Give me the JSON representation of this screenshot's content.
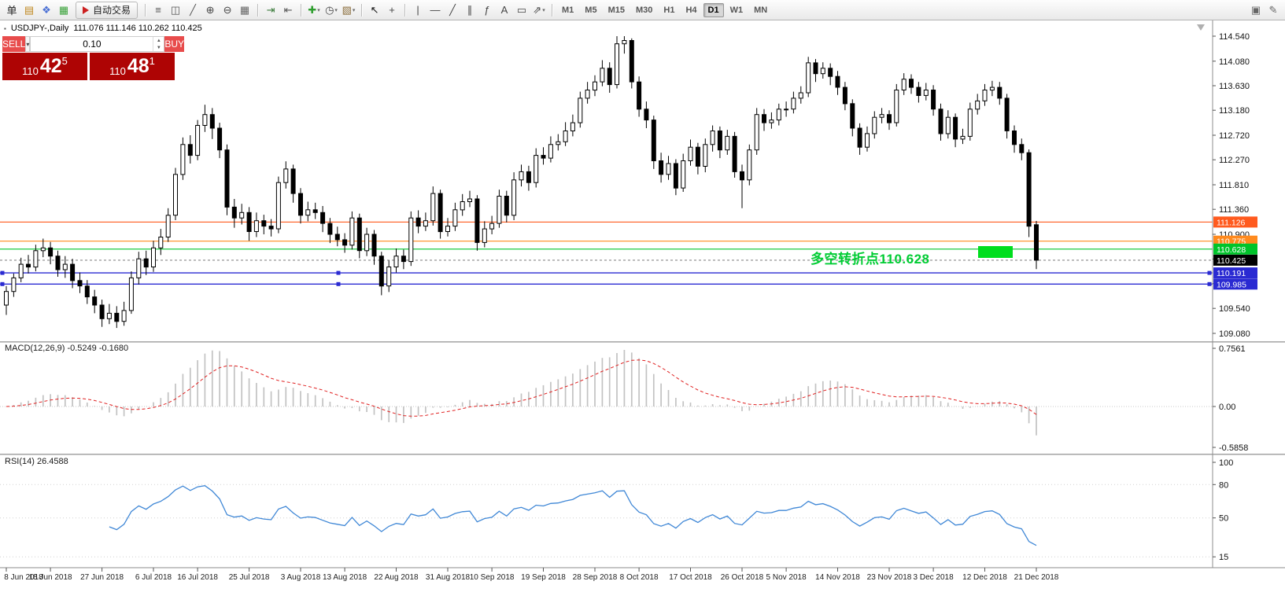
{
  "toolbar": {
    "auto_trading_label": "自动交易",
    "timeframes": [
      "M1",
      "M5",
      "M15",
      "M30",
      "H1",
      "H4",
      "D1",
      "W1",
      "MN"
    ],
    "active_timeframe": "D1",
    "items": [
      {
        "t": "icon",
        "name": "new-order",
        "glyph": "单",
        "color": "#222222"
      },
      {
        "t": "icon",
        "name": "new-chart",
        "glyph": "▤",
        "color": "#c08820"
      },
      {
        "t": "icon",
        "name": "profiles",
        "glyph": "❖",
        "color": "#4a6fd4"
      },
      {
        "t": "icon",
        "name": "data-window",
        "glyph": "▦",
        "color": "#3aa23a"
      },
      {
        "t": "auto",
        "name": "auto-trading"
      },
      {
        "t": "sep"
      },
      {
        "t": "icon",
        "name": "bar-chart",
        "glyph": "≡",
        "color": "#555555"
      },
      {
        "t": "icon",
        "name": "candlestick-chart",
        "glyph": "◫",
        "color": "#555555"
      },
      {
        "t": "icon",
        "name": "line-chart",
        "glyph": "╱",
        "color": "#555555"
      },
      {
        "t": "icon",
        "name": "zoom-in",
        "glyph": "⊕",
        "color": "#444444"
      },
      {
        "t": "icon",
        "name": "zoom-out",
        "glyph": "⊖",
        "color": "#444444"
      },
      {
        "t": "icon",
        "name": "tile-windows",
        "glyph": "▦",
        "color": "#666666"
      },
      {
        "t": "sep"
      },
      {
        "t": "icon",
        "name": "auto-scroll",
        "glyph": "⇥",
        "color": "#3a7a3a"
      },
      {
        "t": "icon",
        "name": "chart-shift",
        "glyph": "⇤",
        "color": "#555555"
      },
      {
        "t": "sep"
      },
      {
        "t": "icon",
        "name": "indicators",
        "glyph": "✚",
        "color": "#2e9e2e",
        "dd": true
      },
      {
        "t": "icon",
        "name": "periods",
        "glyph": "◷",
        "color": "#444444",
        "dd": true
      },
      {
        "t": "icon",
        "name": "templates",
        "glyph": "▧",
        "color": "#8a6d3b",
        "dd": true
      },
      {
        "t": "sep"
      },
      {
        "t": "icon",
        "name": "cursor",
        "glyph": "↖",
        "color": "#111111"
      },
      {
        "t": "icon",
        "name": "crosshair",
        "glyph": "+",
        "color": "#444444"
      },
      {
        "t": "sep"
      },
      {
        "t": "icon",
        "name": "vertical-line",
        "glyph": "|",
        "color": "#444444"
      },
      {
        "t": "icon",
        "name": "horizontal-line",
        "glyph": "—",
        "color": "#444444"
      },
      {
        "t": "icon",
        "name": "trendline",
        "glyph": "╱",
        "color": "#444444"
      },
      {
        "t": "icon",
        "name": "equidistant-channel",
        "glyph": "∥",
        "color": "#444444"
      },
      {
        "t": "icon",
        "name": "fibonacci",
        "glyph": "ƒ",
        "color": "#444444"
      },
      {
        "t": "icon",
        "name": "text",
        "glyph": "A",
        "color": "#444444"
      },
      {
        "t": "icon",
        "name": "text-label",
        "glyph": "▭",
        "color": "#444444"
      },
      {
        "t": "icon",
        "name": "arrows",
        "glyph": "⇗",
        "color": "#444444",
        "dd": true
      },
      {
        "t": "sep"
      },
      {
        "t": "tf"
      },
      {
        "t": "spacer"
      },
      {
        "t": "icon",
        "name": "dock-window",
        "glyph": "▣",
        "color": "#666666"
      },
      {
        "t": "icon",
        "name": "edit",
        "glyph": "✎",
        "color": "#666666"
      }
    ]
  },
  "chart": {
    "title": "USDJPY-,Daily",
    "ohlc": "111.076 111.146 110.262 110.425",
    "annotation": {
      "text": "多空转折点110.628",
      "color": "#00cc33",
      "marker_color": "#00de1e"
    },
    "levels": [
      {
        "price": 111.126,
        "label": "111.126",
        "color": "#ff5a1e"
      },
      {
        "price": 110.775,
        "label": "110.775",
        "color": "#ff8a1e"
      },
      {
        "price": 110.628,
        "label": "110.628",
        "color": "#00c42a"
      },
      {
        "price": 110.425,
        "label": "110.425",
        "color": "#000000",
        "current": true
      },
      {
        "price": 110.191,
        "label": "110.191",
        "color": "#2a2ad2",
        "selected": true
      },
      {
        "price": 109.985,
        "label": "109.985",
        "color": "#2a2ad2",
        "selected": true
      }
    ],
    "y_axis": [
      114.54,
      114.08,
      113.63,
      113.18,
      112.72,
      112.27,
      111.81,
      111.36,
      110.9,
      110.445,
      109.995,
      109.54,
      109.08
    ]
  },
  "one_click": {
    "sell_label": "SELL",
    "buy_label": "BUY",
    "volume": "0.10",
    "sell_big": "110",
    "sell_pips": "42",
    "sell_sup": "5",
    "buy_big": "110",
    "buy_pips": "48",
    "buy_sup": "1"
  },
  "macd": {
    "label": "MACD(12,26,9) -0.5249 -0.1680",
    "axis": [
      "0.7561",
      "0.00",
      "-0.5858"
    ]
  },
  "rsi": {
    "label": "RSI(14) 26.4588",
    "axis": [
      "100",
      "80",
      "50",
      "15"
    ]
  },
  "chart_data": {
    "type": "candlestick",
    "symbol": "USDJPY-",
    "timeframe": "Daily",
    "current_ohlc": {
      "open": 111.076,
      "high": 111.146,
      "low": 110.262,
      "close": 110.425
    },
    "y_range": [
      109.08,
      114.54
    ],
    "x_tick_labels": [
      "8 Jun 2018",
      "18 Jun 2018",
      "27 Jun 2018",
      "6 Jul 2018",
      "16 Jul 2018",
      "25 Jul 2018",
      "3 Aug 2018",
      "13 Aug 2018",
      "22 Aug 2018",
      "31 Aug 2018",
      "10 Sep 2018",
      "19 Sep 2018",
      "28 Sep 2018",
      "8 Oct 2018",
      "17 Oct 2018",
      "26 Oct 2018",
      "5 Nov 2018",
      "14 Nov 2018",
      "23 Nov 2018",
      "3 Dec 2018",
      "12 Dec 2018",
      "21 Dec 2018"
    ],
    "x_tick_indices": [
      0,
      6,
      13,
      20,
      26,
      33,
      40,
      46,
      53,
      60,
      66,
      73,
      80,
      86,
      93,
      100,
      106,
      113,
      120,
      126,
      133,
      140
    ],
    "indicators": [
      {
        "name": "MACD",
        "params": [
          12,
          26,
          9
        ],
        "values": [
          -0.5249,
          -0.168
        ]
      },
      {
        "name": "RSI",
        "params": [
          14
        ],
        "value": 26.4588
      }
    ],
    "candles": [
      [
        109.6,
        109.95,
        109.42,
        109.85
      ],
      [
        109.85,
        110.18,
        109.75,
        110.1
      ],
      [
        110.1,
        110.47,
        110.02,
        110.35
      ],
      [
        110.35,
        110.52,
        110.18,
        110.3
      ],
      [
        110.3,
        110.71,
        110.22,
        110.6
      ],
      [
        110.6,
        110.82,
        110.48,
        110.65
      ],
      [
        110.65,
        110.76,
        110.35,
        110.5
      ],
      [
        110.5,
        110.6,
        110.12,
        110.25
      ],
      [
        110.25,
        110.5,
        110.1,
        110.35
      ],
      [
        110.35,
        110.45,
        109.91,
        110.05
      ],
      [
        110.05,
        110.2,
        109.82,
        109.95
      ],
      [
        109.95,
        110.06,
        109.62,
        109.75
      ],
      [
        109.75,
        109.88,
        109.45,
        109.6
      ],
      [
        109.6,
        109.7,
        109.2,
        109.35
      ],
      [
        109.35,
        109.62,
        109.25,
        109.45
      ],
      [
        109.45,
        109.58,
        109.18,
        109.3
      ],
      [
        109.3,
        109.66,
        109.22,
        109.5
      ],
      [
        109.5,
        110.22,
        109.44,
        110.1
      ],
      [
        110.1,
        110.58,
        109.98,
        110.45
      ],
      [
        110.45,
        110.6,
        110.15,
        110.3
      ],
      [
        110.3,
        110.78,
        110.21,
        110.65
      ],
      [
        110.65,
        111.0,
        110.52,
        110.85
      ],
      [
        110.85,
        111.38,
        110.76,
        111.25
      ],
      [
        111.25,
        112.12,
        111.16,
        112.0
      ],
      [
        112.0,
        112.68,
        111.9,
        112.55
      ],
      [
        112.55,
        112.72,
        112.2,
        112.35
      ],
      [
        112.35,
        113.0,
        112.26,
        112.9
      ],
      [
        112.9,
        113.28,
        112.78,
        113.1
      ],
      [
        113.1,
        113.22,
        112.65,
        112.85
      ],
      [
        112.85,
        112.95,
        112.3,
        112.45
      ],
      [
        112.45,
        112.55,
        111.25,
        111.4
      ],
      [
        111.4,
        111.55,
        111.02,
        111.2
      ],
      [
        111.2,
        111.46,
        111.08,
        111.3
      ],
      [
        111.3,
        111.4,
        110.78,
        110.95
      ],
      [
        110.95,
        111.3,
        110.85,
        111.15
      ],
      [
        111.15,
        111.26,
        110.9,
        111.05
      ],
      [
        111.05,
        111.18,
        110.86,
        111.0
      ],
      [
        111.0,
        111.96,
        110.92,
        111.85
      ],
      [
        111.85,
        112.24,
        111.74,
        112.1
      ],
      [
        112.1,
        112.18,
        111.48,
        111.65
      ],
      [
        111.65,
        111.75,
        111.1,
        111.25
      ],
      [
        111.25,
        111.5,
        111.14,
        111.35
      ],
      [
        111.35,
        111.48,
        111.18,
        111.3
      ],
      [
        111.3,
        111.42,
        110.94,
        111.1
      ],
      [
        111.1,
        111.2,
        110.74,
        110.9
      ],
      [
        110.9,
        111.04,
        110.68,
        110.8
      ],
      [
        110.8,
        110.92,
        110.56,
        110.7
      ],
      [
        110.7,
        111.32,
        110.62,
        111.2
      ],
      [
        111.2,
        111.28,
        110.46,
        110.6
      ],
      [
        110.6,
        111.02,
        110.5,
        110.9
      ],
      [
        110.9,
        110.98,
        110.34,
        110.5
      ],
      [
        110.5,
        110.58,
        109.78,
        109.95
      ],
      [
        109.95,
        110.42,
        109.84,
        110.3
      ],
      [
        110.3,
        110.64,
        110.2,
        110.5
      ],
      [
        110.5,
        110.62,
        110.26,
        110.4
      ],
      [
        110.4,
        111.32,
        110.32,
        111.2
      ],
      [
        111.2,
        111.34,
        110.92,
        111.05
      ],
      [
        111.05,
        111.3,
        110.96,
        111.15
      ],
      [
        111.15,
        111.78,
        111.06,
        111.65
      ],
      [
        111.65,
        111.72,
        110.82,
        110.95
      ],
      [
        110.95,
        111.2,
        110.86,
        111.05
      ],
      [
        111.05,
        111.48,
        110.96,
        111.35
      ],
      [
        111.35,
        111.64,
        111.24,
        111.5
      ],
      [
        111.5,
        111.7,
        111.4,
        111.55
      ],
      [
        111.55,
        111.62,
        110.6,
        110.75
      ],
      [
        110.75,
        111.14,
        110.66,
        111.0
      ],
      [
        111.0,
        111.24,
        110.9,
        111.1
      ],
      [
        111.1,
        111.72,
        111.02,
        111.6
      ],
      [
        111.6,
        111.7,
        111.12,
        111.25
      ],
      [
        111.25,
        112.04,
        111.16,
        111.9
      ],
      [
        111.9,
        112.18,
        111.78,
        112.05
      ],
      [
        112.05,
        112.16,
        111.7,
        111.85
      ],
      [
        111.85,
        112.48,
        111.76,
        112.35
      ],
      [
        112.35,
        112.5,
        112.18,
        112.3
      ],
      [
        112.3,
        112.7,
        112.22,
        112.55
      ],
      [
        112.55,
        112.74,
        112.44,
        112.6
      ],
      [
        112.6,
        112.96,
        112.52,
        112.8
      ],
      [
        112.8,
        113.1,
        112.7,
        112.95
      ],
      [
        112.95,
        113.52,
        112.86,
        113.4
      ],
      [
        113.4,
        113.7,
        113.3,
        113.55
      ],
      [
        113.55,
        113.82,
        113.44,
        113.7
      ],
      [
        113.7,
        114.1,
        113.62,
        113.95
      ],
      [
        113.95,
        114.06,
        113.5,
        113.65
      ],
      [
        113.65,
        114.54,
        113.58,
        114.4
      ],
      [
        114.4,
        114.54,
        114.22,
        114.46
      ],
      [
        114.46,
        114.5,
        113.58,
        113.7
      ],
      [
        113.7,
        113.8,
        113.06,
        113.2
      ],
      [
        113.2,
        113.34,
        112.85,
        113.0
      ],
      [
        113.0,
        113.08,
        112.1,
        112.25
      ],
      [
        112.25,
        112.4,
        111.85,
        112.0
      ],
      [
        112.0,
        112.34,
        111.9,
        112.2
      ],
      [
        112.2,
        112.28,
        111.62,
        111.75
      ],
      [
        111.75,
        112.38,
        111.68,
        112.25
      ],
      [
        112.25,
        112.64,
        112.16,
        112.5
      ],
      [
        112.5,
        112.58,
        112.0,
        112.15
      ],
      [
        112.15,
        112.66,
        112.04,
        112.55
      ],
      [
        112.55,
        112.9,
        112.42,
        112.8
      ],
      [
        112.8,
        112.88,
        112.3,
        112.45
      ],
      [
        112.45,
        112.82,
        112.36,
        112.7
      ],
      [
        112.7,
        112.78,
        111.94,
        112.05
      ],
      [
        112.05,
        112.18,
        111.38,
        111.9
      ],
      [
        111.9,
        112.55,
        111.8,
        112.45
      ],
      [
        112.45,
        113.22,
        112.36,
        113.1
      ],
      [
        113.1,
        113.2,
        112.8,
        112.95
      ],
      [
        112.95,
        113.14,
        112.84,
        113.0
      ],
      [
        113.0,
        113.3,
        112.9,
        113.2
      ],
      [
        113.2,
        113.34,
        113.06,
        113.2
      ],
      [
        113.2,
        113.52,
        113.12,
        113.4
      ],
      [
        113.4,
        113.62,
        113.3,
        113.5
      ],
      [
        113.5,
        114.16,
        113.42,
        114.05
      ],
      [
        114.05,
        114.12,
        113.7,
        113.85
      ],
      [
        113.85,
        114.06,
        113.76,
        113.95
      ],
      [
        113.95,
        114.04,
        113.64,
        113.8
      ],
      [
        113.8,
        113.9,
        113.46,
        113.6
      ],
      [
        113.6,
        113.7,
        113.18,
        113.3
      ],
      [
        113.3,
        113.38,
        112.7,
        112.85
      ],
      [
        112.85,
        112.94,
        112.36,
        112.5
      ],
      [
        112.5,
        112.88,
        112.42,
        112.75
      ],
      [
        112.75,
        113.16,
        112.66,
        113.05
      ],
      [
        113.05,
        113.22,
        112.94,
        113.1
      ],
      [
        113.1,
        113.18,
        112.82,
        112.95
      ],
      [
        112.95,
        113.66,
        112.88,
        113.55
      ],
      [
        113.55,
        113.86,
        113.46,
        113.75
      ],
      [
        113.75,
        113.84,
        113.48,
        113.6
      ],
      [
        113.6,
        113.7,
        113.32,
        113.45
      ],
      [
        113.45,
        113.68,
        113.36,
        113.55
      ],
      [
        113.55,
        113.64,
        113.08,
        113.2
      ],
      [
        113.2,
        113.3,
        112.62,
        112.75
      ],
      [
        112.75,
        113.18,
        112.66,
        113.05
      ],
      [
        113.05,
        113.12,
        112.5,
        112.65
      ],
      [
        112.65,
        112.84,
        112.56,
        112.7
      ],
      [
        112.7,
        113.32,
        112.62,
        113.2
      ],
      [
        113.2,
        113.48,
        113.1,
        113.35
      ],
      [
        113.35,
        113.66,
        113.26,
        113.55
      ],
      [
        113.55,
        113.72,
        113.44,
        113.6
      ],
      [
        113.6,
        113.7,
        113.28,
        113.4
      ],
      [
        113.4,
        113.48,
        112.66,
        112.8
      ],
      [
        112.8,
        112.9,
        112.4,
        112.55
      ],
      [
        112.55,
        112.66,
        112.26,
        112.4
      ],
      [
        112.4,
        112.46,
        110.85,
        111.05
      ],
      [
        111.076,
        111.146,
        110.262,
        110.425
      ]
    ]
  }
}
